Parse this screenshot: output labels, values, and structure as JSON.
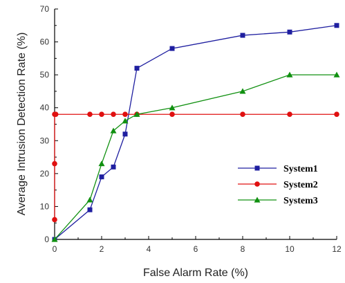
{
  "chart_data": {
    "type": "line",
    "title": "",
    "xlabel": "False Alarm Rate (%)",
    "ylabel": "Average Intrusion Detection Rate (%)",
    "xlim": [
      0,
      12
    ],
    "ylim": [
      0,
      70
    ],
    "xticks": [
      0,
      2,
      4,
      6,
      8,
      10,
      12
    ],
    "yticks": [
      0,
      10,
      20,
      30,
      40,
      50,
      60,
      70
    ],
    "grid": false,
    "legend_position": "lower-right",
    "series": [
      {
        "name": "System1",
        "color": "#1f1fa0",
        "marker": "square",
        "x": [
          0,
          1.5,
          2,
          2.5,
          3,
          3.5,
          5,
          8,
          10,
          12
        ],
        "y": [
          0,
          9,
          19,
          22,
          32,
          52,
          58,
          62,
          63,
          65
        ]
      },
      {
        "name": "System2",
        "color": "#e01010",
        "marker": "circle",
        "x": [
          0,
          0,
          0,
          0.05,
          1.5,
          2,
          2.5,
          3,
          3.5,
          5,
          8,
          10,
          12
        ],
        "y": [
          6,
          23,
          38,
          38,
          38,
          38,
          38,
          38,
          38,
          38,
          38,
          38,
          38
        ]
      },
      {
        "name": "System3",
        "color": "#109010",
        "marker": "triangle",
        "x": [
          0,
          1.5,
          2,
          2.5,
          3,
          3.5,
          5,
          8,
          10,
          12
        ],
        "y": [
          0,
          12,
          23,
          33,
          36,
          38,
          40,
          45,
          50,
          50
        ]
      }
    ]
  }
}
